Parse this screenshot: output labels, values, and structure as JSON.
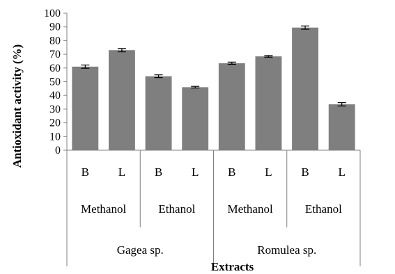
{
  "chart_data": {
    "type": "bar",
    "title": "",
    "xlabel": "Extracts",
    "ylabel": "Antioxidant activity (%)",
    "ylim": [
      0,
      100
    ],
    "yticks": [
      0,
      10,
      20,
      30,
      40,
      50,
      60,
      70,
      80,
      90,
      100
    ],
    "grid": false,
    "legend": "none",
    "bar_color": "#7f7f7f",
    "categories": [
      {
        "part": "B",
        "solvent": "Methanol",
        "species": "Gagea sp."
      },
      {
        "part": "L",
        "solvent": "Methanol",
        "species": "Gagea sp."
      },
      {
        "part": "B",
        "solvent": "Ethanol",
        "species": "Gagea sp."
      },
      {
        "part": "L",
        "solvent": "Ethanol",
        "species": "Gagea sp."
      },
      {
        "part": "B",
        "solvent": "Methanol",
        "species": "Romulea sp."
      },
      {
        "part": "L",
        "solvent": "Methanol",
        "species": "Romulea sp."
      },
      {
        "part": "B",
        "solvent": "Ethanol",
        "species": "Romulea sp."
      },
      {
        "part": "L",
        "solvent": "Ethanol",
        "species": "Romulea sp."
      }
    ],
    "values": [
      61,
      73,
      54,
      46,
      63.5,
      68.5,
      89.5,
      33.5
    ],
    "errors": [
      1.2,
      1.2,
      1.0,
      0.6,
      0.8,
      0.6,
      1.2,
      1.2
    ],
    "solvent_groups": [
      "Methanol",
      "Ethanol",
      "Methanol",
      "Ethanol"
    ],
    "species_groups": [
      "Gagea sp.",
      "Romulea sp."
    ]
  }
}
